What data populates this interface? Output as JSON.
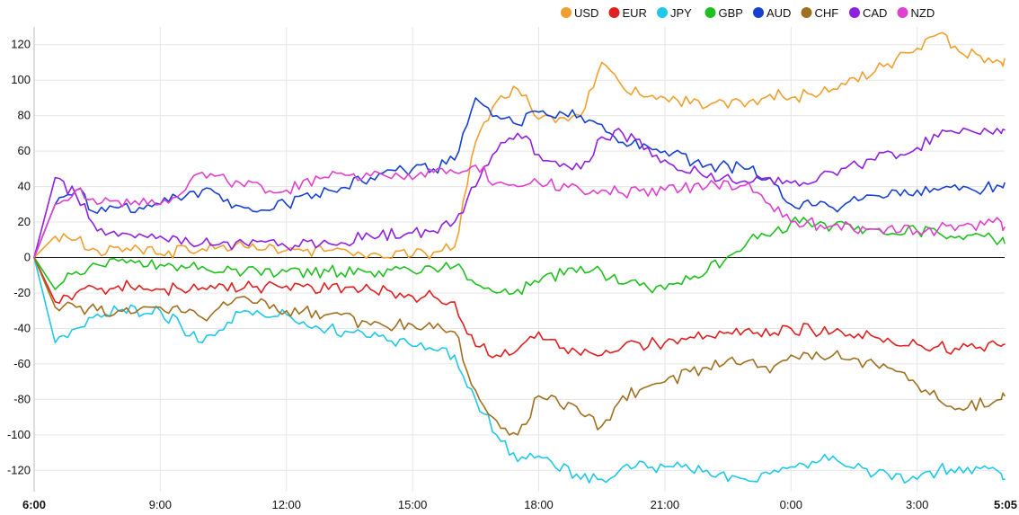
{
  "chart_data": {
    "type": "line",
    "title": "",
    "xlabel": "",
    "ylabel": "",
    "ylim": [
      -132,
      130
    ],
    "grid": true,
    "legend_position": "top-right",
    "x_ticks": [
      {
        "label": "6:00",
        "hour": 0,
        "bold": true
      },
      {
        "label": "9:00",
        "hour": 3,
        "bold": false
      },
      {
        "label": "12:00",
        "hour": 6,
        "bold": false
      },
      {
        "label": "15:00",
        "hour": 9,
        "bold": false
      },
      {
        "label": "18:00",
        "hour": 12,
        "bold": false
      },
      {
        "label": "21:00",
        "hour": 15,
        "bold": false
      },
      {
        "label": "0:00",
        "hour": 18,
        "bold": false
      },
      {
        "label": "3:00",
        "hour": 21,
        "bold": false
      },
      {
        "label": "5:05",
        "hour": 23.08,
        "bold": true
      }
    ],
    "y_ticks": [
      120,
      100,
      80,
      60,
      40,
      20,
      0,
      -20,
      -40,
      -60,
      -80,
      -100,
      -120
    ],
    "x_hours": [
      0,
      0.5,
      1,
      1.5,
      2,
      3,
      4,
      5,
      6,
      7,
      8,
      9,
      9.5,
      10,
      10.5,
      11,
      11.5,
      12,
      13,
      13.5,
      14,
      15,
      16,
      17,
      17.5,
      18,
      19,
      20,
      21,
      21.5,
      22,
      23,
      23.08
    ],
    "series": [
      {
        "name": "USD",
        "color": "#f0a030",
        "values": [
          0,
          12,
          10,
          4,
          6,
          2,
          5,
          6,
          4,
          4,
          2,
          1,
          3,
          6,
          65,
          88,
          95,
          78,
          80,
          110,
          96,
          90,
          85,
          88,
          92,
          90,
          95,
          105,
          118,
          126,
          116,
          110,
          112
        ]
      },
      {
        "name": "EUR",
        "color": "#e02020",
        "values": [
          0,
          -25,
          -20,
          -18,
          -16,
          -18,
          -17,
          -17,
          -16,
          -18,
          -18,
          -22,
          -22,
          -25,
          -50,
          -55,
          -52,
          -42,
          -55,
          -55,
          -50,
          -48,
          -44,
          -40,
          -44,
          -40,
          -42,
          -45,
          -49,
          -50,
          -52,
          -50,
          -49
        ]
      },
      {
        "name": "JPY",
        "color": "#20c8e8",
        "values": [
          0,
          -48,
          -40,
          -32,
          -30,
          -30,
          -48,
          -30,
          -32,
          -40,
          -45,
          -50,
          -52,
          -55,
          -80,
          -100,
          -115,
          -112,
          -125,
          -125,
          -118,
          -118,
          -120,
          -126,
          -122,
          -118,
          -112,
          -122,
          -125,
          -120,
          -118,
          -122,
          -125
        ]
      },
      {
        "name": "GBP",
        "color": "#20c020",
        "values": [
          0,
          -18,
          -8,
          -4,
          -2,
          -4,
          -5,
          -8,
          -8,
          -8,
          -8,
          -8,
          -6,
          -5,
          -15,
          -20,
          -18,
          -14,
          -5,
          -8,
          -15,
          -18,
          -8,
          10,
          12,
          20,
          18,
          16,
          15,
          14,
          12,
          10,
          8
        ]
      },
      {
        "name": "AUD",
        "color": "#1840d0",
        "values": [
          0,
          30,
          38,
          25,
          28,
          30,
          38,
          28,
          30,
          38,
          45,
          50,
          50,
          55,
          90,
          80,
          75,
          82,
          80,
          75,
          65,
          60,
          52,
          50,
          45,
          30,
          28,
          35,
          38,
          38,
          38,
          40,
          42
        ]
      },
      {
        "name": "CHF",
        "color": "#a07020",
        "values": [
          0,
          -28,
          -28,
          -30,
          -30,
          -28,
          -34,
          -22,
          -30,
          -32,
          -38,
          -38,
          -40,
          -42,
          -75,
          -92,
          -100,
          -78,
          -88,
          -95,
          -78,
          -70,
          -62,
          -58,
          -65,
          -55,
          -55,
          -60,
          -72,
          -80,
          -85,
          -80,
          -78
        ]
      },
      {
        "name": "CAD",
        "color": "#9020e0",
        "values": [
          0,
          45,
          35,
          15,
          12,
          12,
          8,
          8,
          6,
          8,
          12,
          14,
          15,
          20,
          40,
          60,
          70,
          58,
          50,
          68,
          70,
          55,
          45,
          42,
          45,
          42,
          48,
          55,
          62,
          68,
          70,
          70,
          72
        ]
      },
      {
        "name": "NZD",
        "color": "#e040d0",
        "values": [
          0,
          30,
          38,
          30,
          32,
          30,
          48,
          40,
          38,
          45,
          46,
          44,
          48,
          48,
          52,
          42,
          40,
          42,
          38,
          38,
          36,
          38,
          40,
          42,
          30,
          20,
          18,
          16,
          15,
          16,
          18,
          20,
          17
        ]
      }
    ]
  }
}
